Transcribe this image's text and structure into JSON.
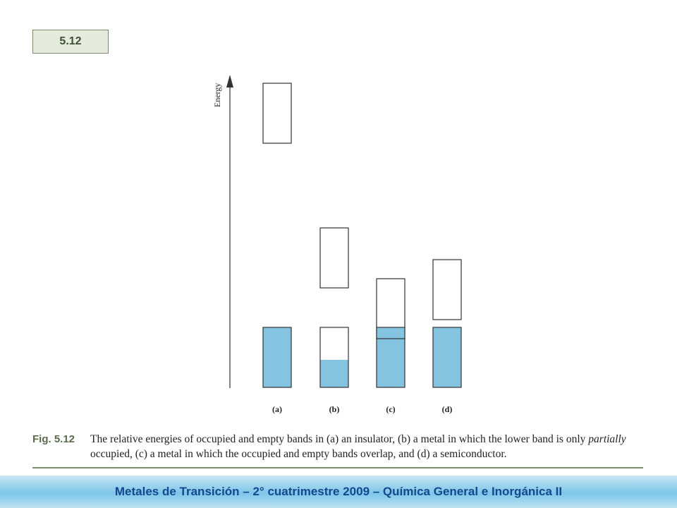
{
  "slide": {
    "number": "5.12"
  },
  "diagram": {
    "axis_label": "Energy",
    "colors": {
      "filled": "#84c4e1",
      "outline": "#333333"
    },
    "columns": [
      {
        "label": "(a)",
        "lower_band_filled_fraction": 1.0,
        "upper_band": "separated (large gap)"
      },
      {
        "label": "(b)",
        "lower_band_filled_fraction": 0.47,
        "upper_band": "separated"
      },
      {
        "label": "(c)",
        "lower_band_filled_fraction": 1.0,
        "upper_band": "overlapping"
      },
      {
        "label": "(d)",
        "lower_band_filled_fraction": 1.0,
        "upper_band": "separated (small gap)"
      }
    ]
  },
  "figure": {
    "label": "Fig. 5.12",
    "caption_part1": "The relative energies of occupied and empty bands in (a) an insulator, (b) a metal in which the lower band is only",
    "caption_italic": "partially",
    "caption_part2": " occupied, (c) a metal in which the occupied and empty bands overlap, and (d) a semiconductor."
  },
  "footer": {
    "text": "Metales de Transición – 2° cuatrimestre 2009 – Química General e Inorgánica II"
  }
}
